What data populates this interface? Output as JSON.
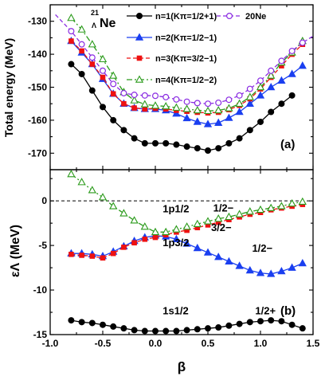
{
  "chart_data": [
    {
      "type": "line",
      "panel_label": "(a)",
      "ylabel": "Total energy (MeV)",
      "xlim": [
        -1.0,
        1.5
      ],
      "ylim": [
        -175,
        -125
      ],
      "yticks": [
        "-170",
        "-160",
        "-150",
        "-140",
        "-130"
      ],
      "nucleus_label": "21ΛNe",
      "legend_position": "top-right",
      "series": [
        {
          "name": "n=1(Kπ=1/2+1)",
          "color": "#000000",
          "marker": "circle",
          "line": "solid",
          "x": [
            -0.8,
            -0.7,
            -0.6,
            -0.5,
            -0.4,
            -0.3,
            -0.2,
            -0.1,
            0.0,
            0.1,
            0.2,
            0.3,
            0.4,
            0.5,
            0.6,
            0.7,
            0.8,
            0.9,
            1.0,
            1.1,
            1.2,
            1.3
          ],
          "y": [
            -143,
            -146,
            -151,
            -156,
            -160,
            -163,
            -165.5,
            -167,
            -167,
            -167,
            -167.4,
            -168,
            -168.5,
            -169.2,
            -168.5,
            -167,
            -165.5,
            -163,
            -160.5,
            -157.5,
            -155,
            -152.5
          ]
        },
        {
          "name": "n=2(Kπ=1/2−1)",
          "color": "#1a3ff0",
          "marker": "triangle",
          "line": "solid",
          "x": [
            -0.8,
            -0.7,
            -0.6,
            -0.5,
            -0.4,
            -0.3,
            -0.2,
            -0.1,
            0.0,
            0.1,
            0.2,
            0.3,
            0.4,
            0.5,
            0.6,
            0.7,
            0.8,
            0.9,
            1.0,
            1.1,
            1.2,
            1.3,
            1.4
          ],
          "y": [
            -136,
            -139.5,
            -143,
            -147.5,
            -152,
            -155,
            -156.3,
            -156.6,
            -156.6,
            -157,
            -158,
            -159.4,
            -160.5,
            -161.2,
            -160.8,
            -159.3,
            -157.5,
            -155,
            -152.5,
            -150,
            -148,
            -146,
            -143.5
          ]
        },
        {
          "name": "n=3(Kπ=3/2−1)",
          "color": "#ee1111",
          "marker": "square",
          "line": "dashed",
          "x": [
            -0.8,
            -0.7,
            -0.6,
            -0.5,
            -0.4,
            -0.3,
            -0.2,
            -0.1,
            0.0,
            0.1,
            0.2,
            0.3,
            0.4,
            0.5,
            0.6,
            0.7,
            0.8,
            0.9,
            1.0,
            1.1,
            1.2,
            1.3,
            1.4
          ],
          "y": [
            -136,
            -139,
            -143,
            -147,
            -152,
            -155,
            -156.3,
            -156.6,
            -156.4,
            -156.6,
            -157,
            -157.3,
            -157.6,
            -157.8,
            -157.6,
            -156.8,
            -155.5,
            -153.5,
            -150.5,
            -147,
            -143.5,
            -140,
            -137
          ]
        },
        {
          "name": "n=4(Kπ=1/2−2)",
          "color": "#2a9a1a",
          "marker": "triangle-open",
          "line": "dashdot",
          "x": [
            -0.8,
            -0.7,
            -0.6,
            -0.5,
            -0.4,
            -0.3,
            -0.2,
            -0.1,
            0.0,
            0.1,
            0.2,
            0.3,
            0.4,
            0.5,
            0.6,
            0.7,
            0.8,
            0.9,
            1.0,
            1.1,
            1.2,
            1.3,
            1.4
          ],
          "y": [
            -129,
            -132.5,
            -137,
            -141.5,
            -146.5,
            -151.5,
            -154,
            -155.2,
            -155.6,
            -155.8,
            -156.2,
            -156.6,
            -157,
            -157.2,
            -157,
            -156.4,
            -155,
            -153,
            -150,
            -146.5,
            -142.5,
            -139.5,
            -136
          ]
        },
        {
          "name": "20Ne",
          "color": "#8a2be2",
          "marker": "circle-open",
          "line": "dashed",
          "x": [
            -0.95,
            -0.8,
            -0.7,
            -0.6,
            -0.5,
            -0.4,
            -0.3,
            -0.2,
            -0.1,
            0.0,
            0.1,
            0.2,
            0.3,
            0.4,
            0.5,
            0.6,
            0.7,
            0.8,
            0.9,
            1.0,
            1.1,
            1.2,
            1.3,
            1.4,
            1.5
          ],
          "y": [
            -128,
            -133,
            -137,
            -141,
            -145,
            -149,
            -151.8,
            -152.3,
            -152.5,
            -152.6,
            -153,
            -153.7,
            -154.4,
            -154.8,
            -155,
            -154.7,
            -153.8,
            -152.5,
            -150.5,
            -148,
            -145,
            -142,
            -139,
            -136.5,
            -134.5
          ]
        }
      ]
    },
    {
      "type": "line",
      "panel_label": "(b)",
      "ylabel": "εΛ (MeV)",
      "xlabel": "β",
      "xlim": [
        -1.0,
        1.5
      ],
      "ylim": [
        -15,
        3.5
      ],
      "xticks": [
        "-1.0",
        "-0.5",
        "0.0",
        "0.5",
        "1.0",
        "1.5"
      ],
      "yticks": [
        "-15",
        "-10",
        "-5",
        "0"
      ],
      "annotations": [
        {
          "text": "1p1/2",
          "x": 0.07,
          "y": -1.3
        },
        {
          "text": "1/2−",
          "x": 0.55,
          "y": -1.2
        },
        {
          "text": "3/2−",
          "x": 0.53,
          "y": -3.4
        },
        {
          "text": "1p3/2",
          "x": 0.07,
          "y": -5.1
        },
        {
          "text": "1/2−",
          "x": 0.92,
          "y": -5.7
        },
        {
          "text": "1s1/2",
          "x": 0.07,
          "y": -12.7
        },
        {
          "text": "1/2+",
          "x": 0.95,
          "y": -12.7
        }
      ],
      "series": [
        {
          "name": "1/2+",
          "color": "#000000",
          "marker": "circle",
          "line": "solid",
          "x": [
            -0.8,
            -0.7,
            -0.6,
            -0.5,
            -0.4,
            -0.3,
            -0.2,
            -0.1,
            0.0,
            0.1,
            0.2,
            0.3,
            0.4,
            0.5,
            0.6,
            0.7,
            0.8,
            0.9,
            1.0,
            1.1,
            1.2,
            1.3,
            1.4
          ],
          "y": [
            -13.4,
            -13.6,
            -13.7,
            -13.9,
            -14.1,
            -14.3,
            -14.5,
            -14.6,
            -14.6,
            -14.6,
            -14.6,
            -14.5,
            -14.4,
            -14.3,
            -14.2,
            -14.0,
            -13.8,
            -13.6,
            -13.5,
            -13.4,
            -13.5,
            -13.9,
            -14.3
          ]
        },
        {
          "name": "1/2− (lower)",
          "color": "#1a3ff0",
          "marker": "triangle",
          "line": "solid",
          "x": [
            -0.8,
            -0.7,
            -0.6,
            -0.5,
            -0.4,
            -0.3,
            -0.2,
            -0.1,
            0.0,
            0.1,
            0.2,
            0.3,
            0.4,
            0.5,
            0.6,
            0.7,
            0.8,
            0.9,
            1.0,
            1.1,
            1.2,
            1.3,
            1.4
          ],
          "y": [
            -5.9,
            -5.9,
            -6.0,
            -6.2,
            -5.7,
            -5.1,
            -4.5,
            -4.1,
            -3.9,
            -4.0,
            -4.3,
            -4.8,
            -5.3,
            -5.8,
            -6.3,
            -6.8,
            -7.3,
            -7.8,
            -8.1,
            -8.2,
            -7.9,
            -7.5,
            -7.0
          ]
        },
        {
          "name": "3/2−",
          "color": "#ee1111",
          "marker": "square",
          "line": "dashed",
          "x": [
            -0.8,
            -0.7,
            -0.6,
            -0.5,
            -0.4,
            -0.3,
            -0.2,
            -0.1,
            0.0,
            0.1,
            0.2,
            0.3,
            0.4,
            0.5,
            0.6,
            0.7,
            0.8,
            0.9,
            1.0,
            1.1,
            1.2,
            1.3,
            1.4
          ],
          "y": [
            -6.0,
            -6.1,
            -6.2,
            -6.4,
            -5.9,
            -5.2,
            -4.7,
            -4.3,
            -4.1,
            -3.8,
            -3.5,
            -3.3,
            -3.0,
            -2.7,
            -2.4,
            -2.1,
            -1.8,
            -1.5,
            -1.3,
            -1.0,
            -0.8,
            -0.6,
            -0.4
          ]
        },
        {
          "name": "1/2− (upper)",
          "color": "#2a9a1a",
          "marker": "triangle-open",
          "line": "dashdot",
          "x": [
            -0.8,
            -0.7,
            -0.6,
            -0.5,
            -0.4,
            -0.3,
            -0.2,
            -0.1,
            0.0,
            0.1,
            0.2,
            0.3,
            0.4,
            0.5,
            0.6,
            0.7,
            0.8,
            0.9,
            1.0,
            1.1,
            1.2,
            1.3,
            1.4
          ],
          "y": [
            3.0,
            2.1,
            1.2,
            0.4,
            -0.6,
            -1.4,
            -2.2,
            -2.9,
            -3.5,
            -3.5,
            -3.2,
            -2.9,
            -2.6,
            -2.3,
            -2.0,
            -1.8,
            -1.5,
            -1.2,
            -1.0,
            -0.8,
            -0.6,
            -0.3,
            -0.1
          ]
        }
      ],
      "reference_line": {
        "y": 0,
        "style": "dashed"
      }
    }
  ]
}
